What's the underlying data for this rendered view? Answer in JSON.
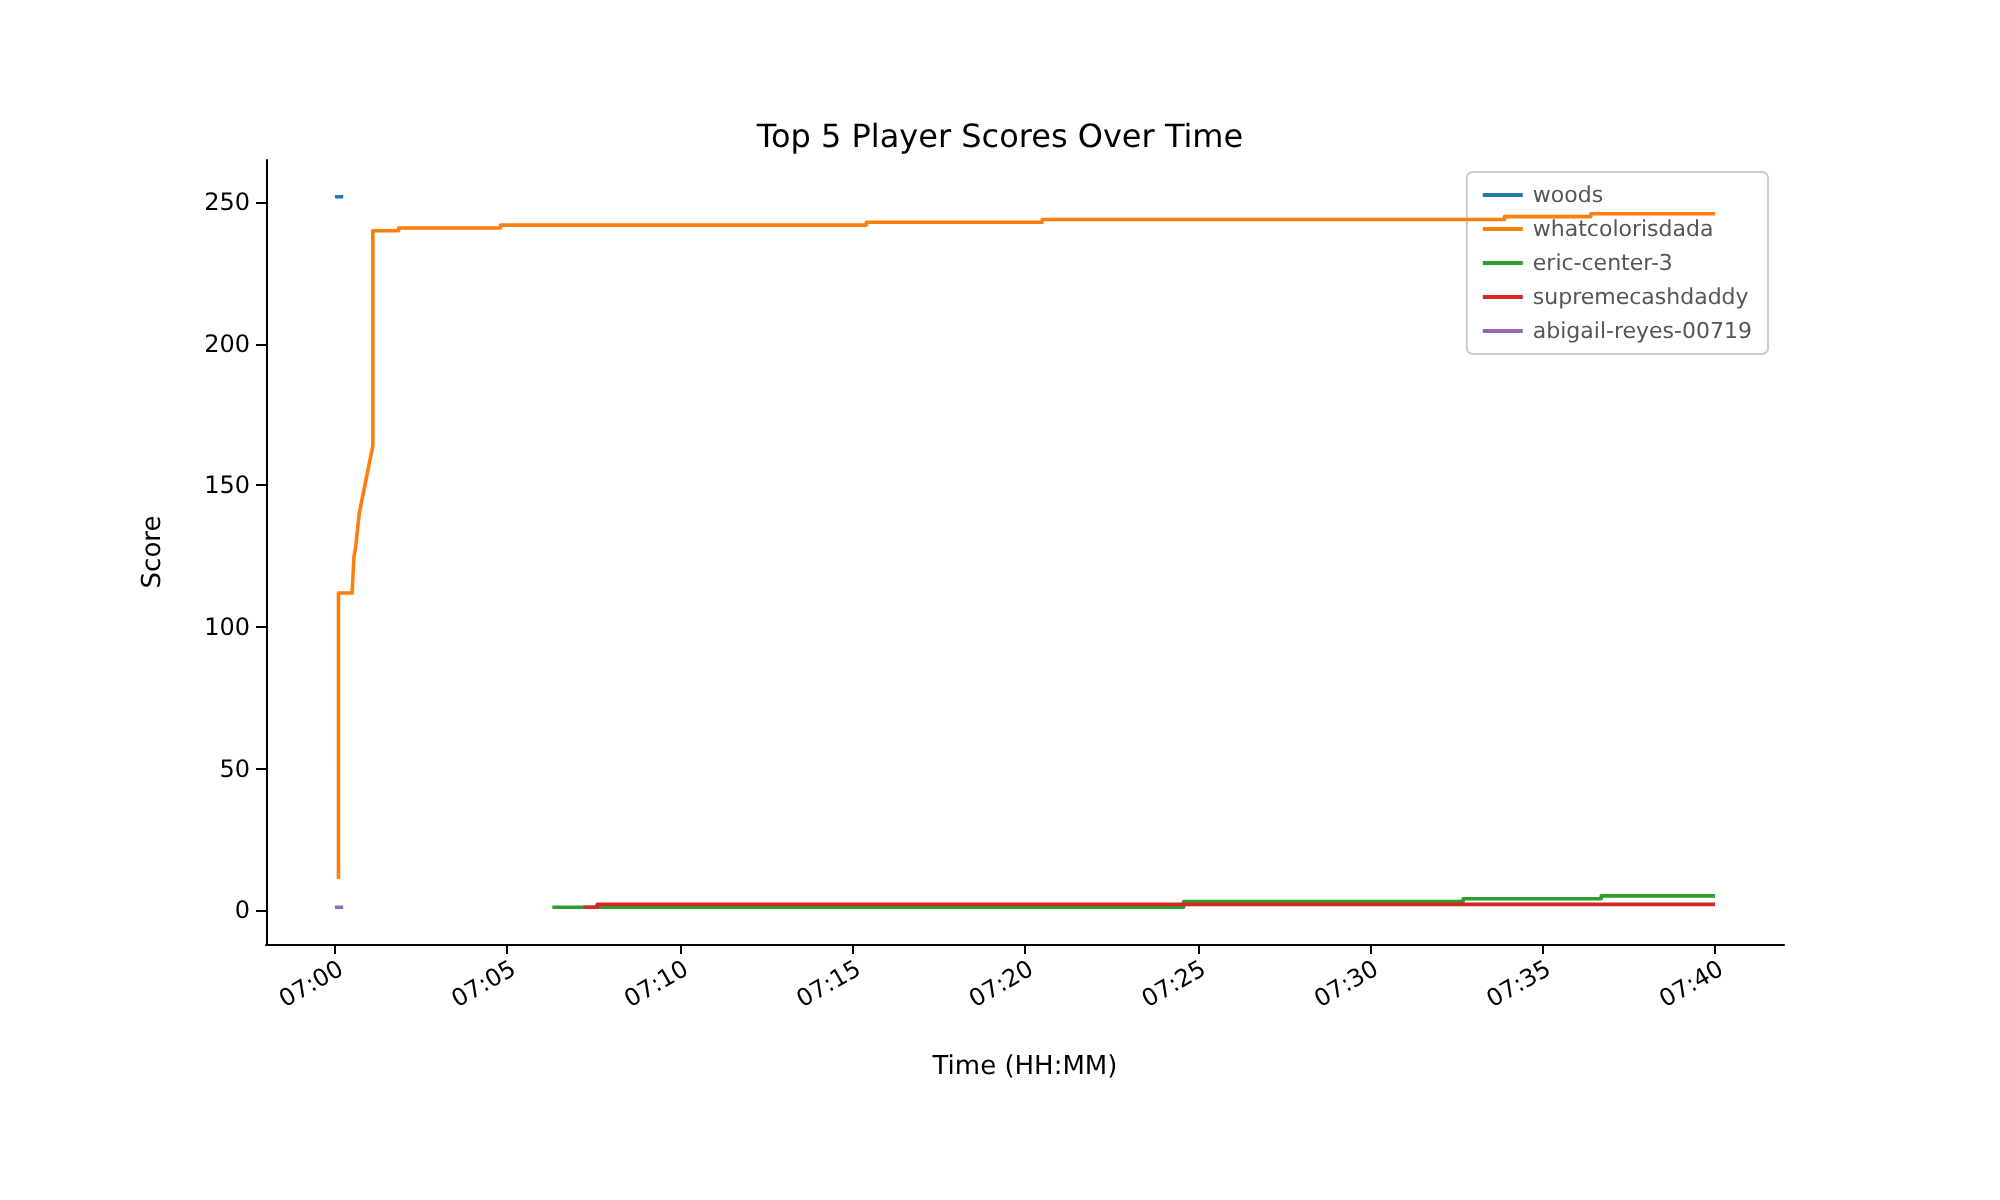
{
  "chart_data": {
    "type": "line",
    "title": "Top 5 Player Scores Over Time",
    "xlabel": "Time (HH:MM)",
    "ylabel": "Score",
    "xlim": [
      6.9667,
      7.7
    ],
    "ylim": [
      -12,
      265
    ],
    "xticks": [
      {
        "value": 7,
        "label": "07:00"
      },
      {
        "value": 7.0833,
        "label": "07:05"
      },
      {
        "value": 7.1667,
        "label": "07:10"
      },
      {
        "value": 7.25,
        "label": "07:15"
      },
      {
        "value": 7.3333,
        "label": "07:20"
      },
      {
        "value": 7.4167,
        "label": "07:25"
      },
      {
        "value": 7.5,
        "label": "07:30"
      },
      {
        "value": 7.5833,
        "label": "07:35"
      },
      {
        "value": 7.6667,
        "label": "07:40"
      }
    ],
    "yticks": [
      0,
      50,
      100,
      150,
      200,
      250
    ],
    "grid": false,
    "legend": "top right",
    "marker": "none",
    "line_style": "solid",
    "series": [
      {
        "name": "woods",
        "color": "#1f77b4",
        "x": [
          7,
          7.004
        ],
        "values": [
          252,
          252
        ]
      },
      {
        "name": "whatcolorisdada",
        "color": "#ff7f0e",
        "x": [
          7.0017,
          7.0017,
          7.0083,
          7.0092,
          7.01,
          7.0117,
          7.015,
          7.0183,
          7.0183,
          7.0308,
          7.0308,
          7.08,
          7.08,
          7.2567,
          7.2567,
          7.3417,
          7.3417,
          7.565,
          7.565,
          7.6067,
          7.6067,
          7.6667
        ],
        "values": [
          11,
          112,
          112,
          125,
          128,
          140,
          152,
          164,
          240,
          240,
          241,
          241,
          242,
          242,
          243,
          243,
          244,
          244,
          245,
          245,
          246,
          246
        ]
      },
      {
        "name": "eric-center-3",
        "color": "#2ca02c",
        "x": [
          7.105,
          7.41,
          7.41,
          7.545,
          7.545,
          7.6117,
          7.6117,
          7.6667
        ],
        "values": [
          1,
          1,
          3,
          3,
          4,
          4,
          5,
          5
        ]
      },
      {
        "name": "supremecashdaddy",
        "color": "#d62728",
        "x": [
          7.12,
          7.1267,
          7.1267,
          7.6667
        ],
        "values": [
          1,
          1,
          2,
          2
        ]
      },
      {
        "name": "abigail-reyes-00719",
        "color": "#9467bd",
        "x": [
          7,
          7.004
        ],
        "values": [
          1,
          1
        ]
      }
    ]
  }
}
